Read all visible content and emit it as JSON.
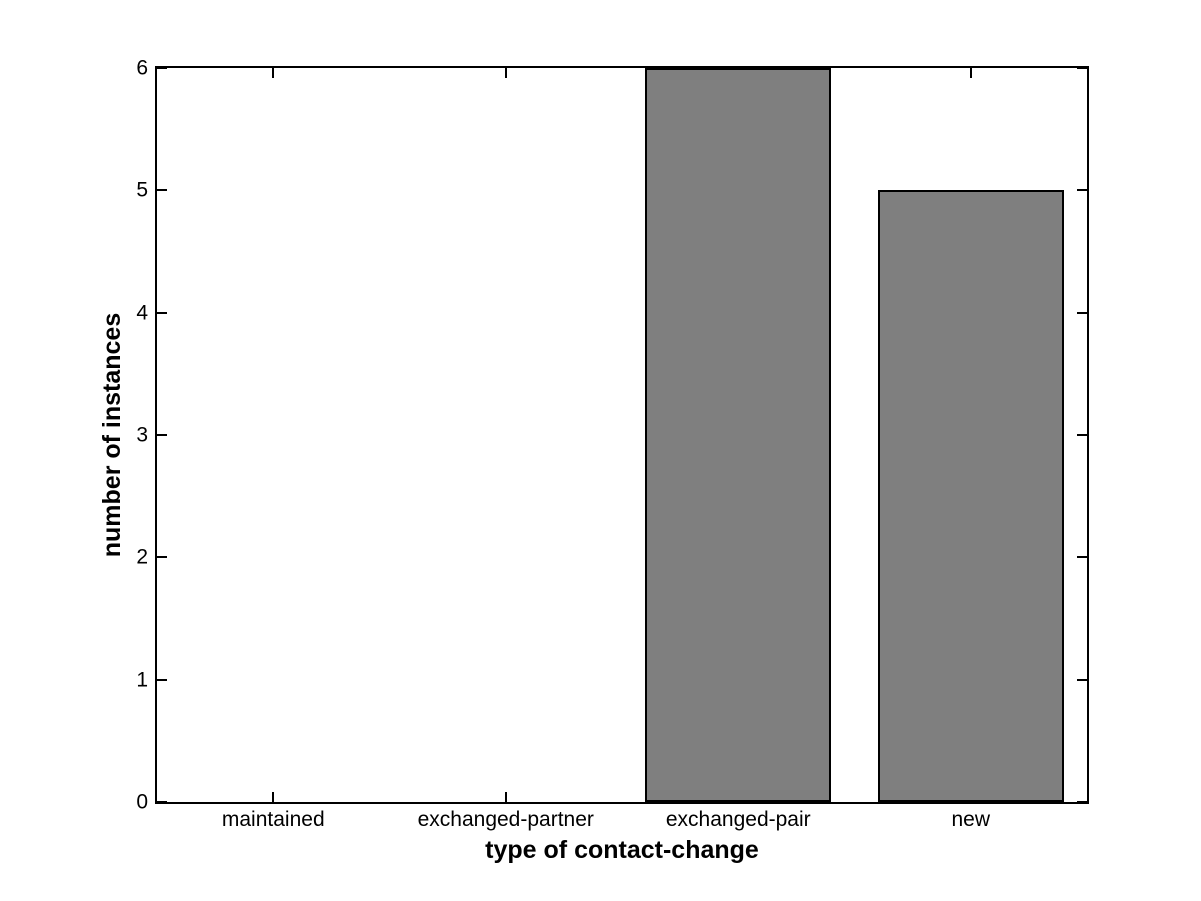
{
  "chart_data": {
    "type": "bar",
    "xlabel": "type of contact-change",
    "ylabel": "number of instances",
    "categories": [
      "maintained",
      "exchanged-partner",
      "exchanged-pair",
      "new"
    ],
    "values": [
      0,
      0,
      6,
      5
    ],
    "ylim": [
      0,
      6
    ],
    "yticks": [
      0,
      1,
      2,
      3,
      4,
      5,
      6
    ],
    "bar_color": "#7f7f7f",
    "bar_edge_color": "#000000",
    "axis_color": "#000000",
    "background_color": "#ffffff",
    "bar_width_fraction": 0.8,
    "grid": false,
    "tick_direction": "in"
  }
}
